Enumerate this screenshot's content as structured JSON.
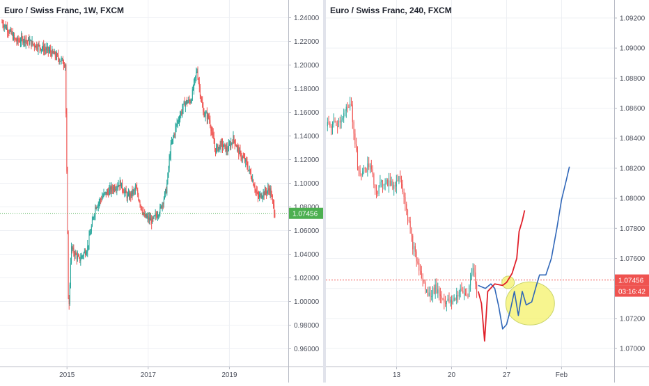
{
  "colors": {
    "up": "#26a69a",
    "down": "#ef5350",
    "grid": "#eef0f4",
    "axis_text": "#4a4e5a",
    "price_tag": "#4caf50",
    "last_price_line_left": "#4caf50",
    "last_price_line_right": "#ef5350",
    "timer_tag": "#ef5350",
    "drawing_red": "#e0202a",
    "drawing_blue": "#2f66b8",
    "highlight_fill": "#f4f26a",
    "highlight_stroke": "#c9d46a"
  },
  "chart_data": [
    {
      "id": "left",
      "type": "candlestick",
      "title": "Euro / Swiss Franc, 1W, FXCM",
      "symbol": "Euro / Swiss Franc",
      "interval": "1W",
      "source": "FXCM",
      "grid": true,
      "ylim": [
        0.945,
        1.255
      ],
      "yticks": [
        "1.24000",
        "1.22000",
        "1.20000",
        "1.18000",
        "1.16000",
        "1.14000",
        "1.12000",
        "1.10000",
        "1.08000",
        "1.06000",
        "1.04000",
        "1.02000",
        "1.00000",
        "0.98000",
        "0.96000"
      ],
      "x_tick_labels": [
        {
          "label": "2015",
          "year": 2015.0
        },
        {
          "label": "2017",
          "year": 2017.0
        },
        {
          "label": "2019",
          "year": 2019.0
        }
      ],
      "xlim_years": [
        2013.35,
        2020.45
      ],
      "last_price": "1.07456",
      "series": [
        {
          "year": 2013.4,
          "close": 1.236
        },
        {
          "year": 2013.55,
          "close": 1.23
        },
        {
          "year": 2013.75,
          "close": 1.22
        },
        {
          "year": 2013.95,
          "close": 1.222
        },
        {
          "year": 2014.15,
          "close": 1.218
        },
        {
          "year": 2014.35,
          "close": 1.215
        },
        {
          "year": 2014.55,
          "close": 1.212
        },
        {
          "year": 2014.75,
          "close": 1.207
        },
        {
          "year": 2014.96,
          "close": 1.201
        },
        {
          "year": 2015.04,
          "close": 0.985
        },
        {
          "year": 2015.1,
          "close": 1.045
        },
        {
          "year": 2015.3,
          "close": 1.035
        },
        {
          "year": 2015.5,
          "close": 1.045
        },
        {
          "year": 2015.7,
          "close": 1.08
        },
        {
          "year": 2015.9,
          "close": 1.09
        },
        {
          "year": 2016.1,
          "close": 1.095
        },
        {
          "year": 2016.3,
          "close": 1.1
        },
        {
          "year": 2016.5,
          "close": 1.088
        },
        {
          "year": 2016.7,
          "close": 1.095
        },
        {
          "year": 2016.9,
          "close": 1.072
        },
        {
          "year": 2017.1,
          "close": 1.068
        },
        {
          "year": 2017.3,
          "close": 1.078
        },
        {
          "year": 2017.45,
          "close": 1.095
        },
        {
          "year": 2017.55,
          "close": 1.13
        },
        {
          "year": 2017.7,
          "close": 1.15
        },
        {
          "year": 2017.9,
          "close": 1.168
        },
        {
          "year": 2018.05,
          "close": 1.17
        },
        {
          "year": 2018.2,
          "close": 1.196
        },
        {
          "year": 2018.35,
          "close": 1.16
        },
        {
          "year": 2018.5,
          "close": 1.155
        },
        {
          "year": 2018.65,
          "close": 1.128
        },
        {
          "year": 2018.8,
          "close": 1.133
        },
        {
          "year": 2018.95,
          "close": 1.128
        },
        {
          "year": 2019.1,
          "close": 1.138
        },
        {
          "year": 2019.25,
          "close": 1.125
        },
        {
          "year": 2019.4,
          "close": 1.118
        },
        {
          "year": 2019.55,
          "close": 1.105
        },
        {
          "year": 2019.7,
          "close": 1.088
        },
        {
          "year": 2019.85,
          "close": 1.092
        },
        {
          "year": 2020.0,
          "close": 1.095
        },
        {
          "year": 2020.12,
          "close": 1.074
        }
      ]
    },
    {
      "id": "right",
      "type": "candlestick",
      "title": "Euro / Swiss Franc, 240, FXCM",
      "symbol": "Euro / Swiss Franc",
      "interval": "240",
      "source": "FXCM",
      "grid": true,
      "ylim": [
        1.0688,
        1.0932
      ],
      "yticks": [
        "1.09200",
        "1.09000",
        "1.08800",
        "1.08600",
        "1.08400",
        "1.08200",
        "1.08000",
        "1.07800",
        "1.07600",
        "1.07400",
        "1.07200",
        "1.07000"
      ],
      "x_tick_labels": [
        {
          "label": "13",
          "day": 13
        },
        {
          "label": "20",
          "day": 20
        },
        {
          "label": "27",
          "day": 27
        },
        {
          "label": "Feb",
          "day": 34
        }
      ],
      "xlim_days": [
        4.0,
        40.7
      ],
      "last_price": "1.07456",
      "countdown": "03:16:42",
      "series": [
        {
          "day": 4.2,
          "close": 1.0848
        },
        {
          "day": 5.5,
          "close": 1.085
        },
        {
          "day": 6.5,
          "close": 1.0858
        },
        {
          "day": 7.2,
          "close": 1.0862
        },
        {
          "day": 8.2,
          "close": 1.0815
        },
        {
          "day": 9.5,
          "close": 1.0822
        },
        {
          "day": 10.5,
          "close": 1.0805
        },
        {
          "day": 11.5,
          "close": 1.0812
        },
        {
          "day": 12.5,
          "close": 1.0808
        },
        {
          "day": 13.5,
          "close": 1.0815
        },
        {
          "day": 14.2,
          "close": 1.0795
        },
        {
          "day": 15.0,
          "close": 1.077
        },
        {
          "day": 16.0,
          "close": 1.075
        },
        {
          "day": 17.0,
          "close": 1.0735
        },
        {
          "day": 18.0,
          "close": 1.074
        },
        {
          "day": 19.0,
          "close": 1.0732
        },
        {
          "day": 20.0,
          "close": 1.073
        },
        {
          "day": 21.0,
          "close": 1.0738
        },
        {
          "day": 22.0,
          "close": 1.0735
        },
        {
          "day": 22.8,
          "close": 1.0755
        },
        {
          "day": 23.2,
          "close": 1.0738
        }
      ],
      "drawings": {
        "red_path": [
          [
            23.4,
            1.0738
          ],
          [
            23.8,
            1.073
          ],
          [
            24.2,
            1.0705
          ],
          [
            24.6,
            1.0738
          ],
          [
            25.5,
            1.0743
          ],
          [
            26.5,
            1.0742
          ],
          [
            27.0,
            1.0744
          ],
          [
            27.7,
            1.075
          ],
          [
            28.3,
            1.076
          ],
          [
            28.6,
            1.0778
          ],
          [
            29.0,
            1.0785
          ],
          [
            29.3,
            1.0792
          ]
        ],
        "blue_path": [
          [
            23.4,
            1.0742
          ],
          [
            24.3,
            1.074
          ],
          [
            25.0,
            1.0743
          ],
          [
            25.5,
            1.074
          ],
          [
            26.0,
            1.0728
          ],
          [
            26.5,
            1.0713
          ],
          [
            27.0,
            1.0716
          ],
          [
            27.5,
            1.0726
          ],
          [
            28.0,
            1.0738
          ],
          [
            28.5,
            1.0722
          ],
          [
            29.0,
            1.0738
          ],
          [
            29.5,
            1.0729
          ],
          [
            30.2,
            1.0731
          ],
          [
            30.8,
            1.0742
          ],
          [
            31.2,
            1.0749
          ],
          [
            32.0,
            1.0749
          ],
          [
            32.7,
            1.076
          ],
          [
            33.4,
            1.078
          ],
          [
            34.0,
            1.0799
          ],
          [
            34.6,
            1.0812
          ],
          [
            35.0,
            1.0821
          ]
        ],
        "small_circle": {
          "day": 27.2,
          "price": 1.0744
        },
        "large_ellipse": {
          "day": 30.0,
          "price": 1.073
        }
      }
    }
  ]
}
